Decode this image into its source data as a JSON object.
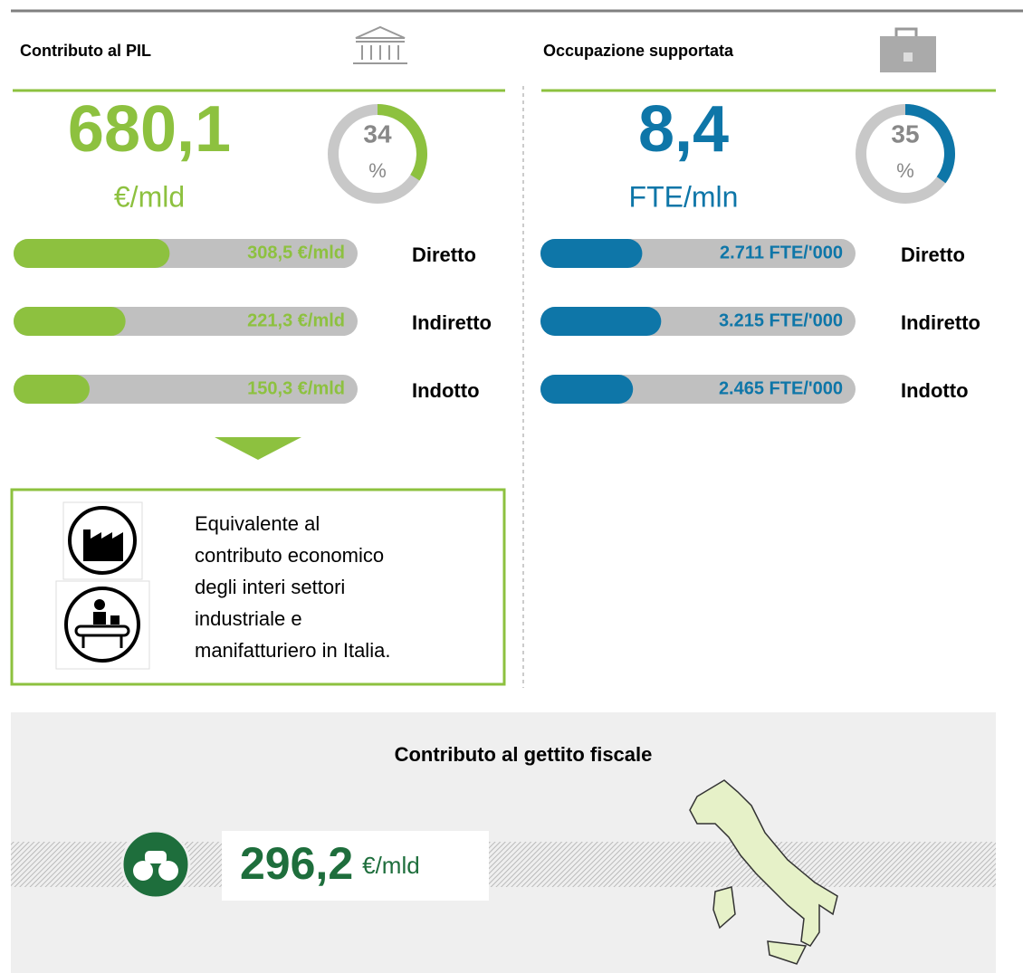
{
  "panels": [
    {
      "title": "Contributo al PIL",
      "total": "680,1",
      "unit": "€/mld",
      "share": 34,
      "percent": "%",
      "items": [
        {
          "name": "Diretto",
          "value": 308.5,
          "label": "308,5 €/mld"
        },
        {
          "name": "Indiretto",
          "value": 221.3,
          "label": "221,3 €/mld"
        },
        {
          "name": "Indotto",
          "value": 150.3,
          "label": "150,3 €/mld"
        }
      ]
    },
    {
      "title": "Occupazione supportata",
      "total": "8,4",
      "unit": "FTE/mln",
      "share": 35,
      "percent": "%",
      "items": [
        {
          "name": "Diretto",
          "value": 2711,
          "label": "2.711 FTE/'000"
        },
        {
          "name": "Indiretto",
          "value": 3215,
          "label": "3.215 FTE/'000"
        },
        {
          "name": "Indotto",
          "value": 2465,
          "label": "2.465 FTE/'000"
        }
      ]
    }
  ],
  "note": {
    "lines": [
      "Equivalente al",
      "contributo economico",
      "degli interi settori",
      "industriale e",
      "manifatturiero in Italia."
    ]
  },
  "fiscal": {
    "title": "Contributo al gettito fiscale",
    "value": "296,2",
    "unit": "€/mld"
  }
}
